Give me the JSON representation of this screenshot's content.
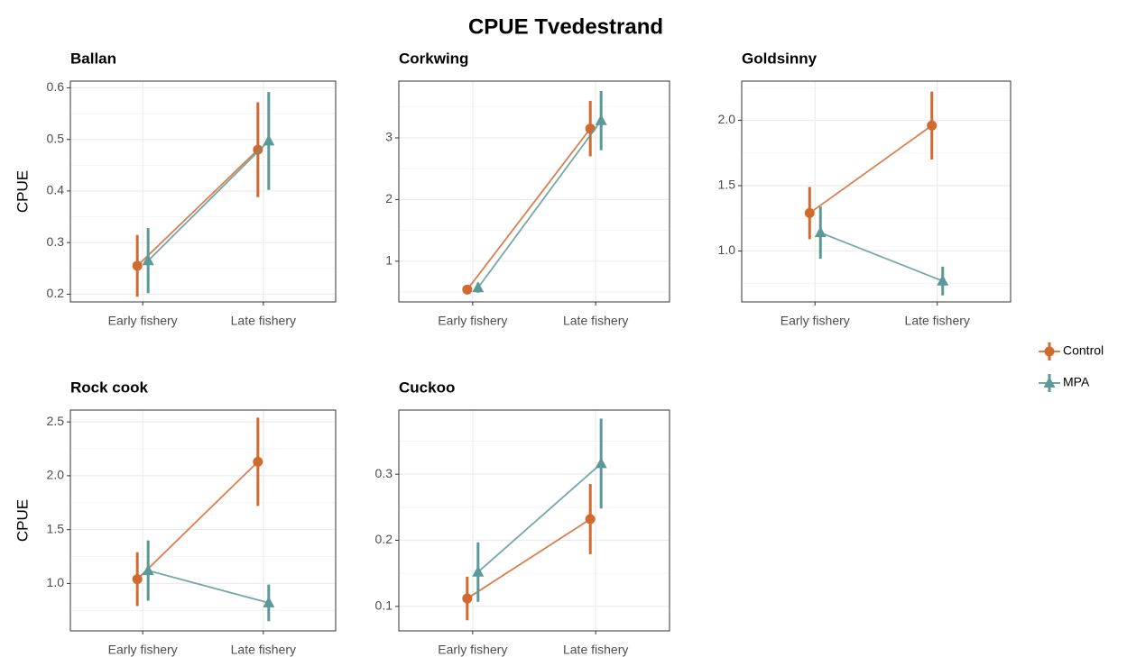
{
  "title": "CPUE Tvedestrand",
  "chart_data": [
    {
      "type": "line",
      "title": "Ballan",
      "ylabel": "CPUE",
      "categories": [
        "Early fishery",
        "Late fishery"
      ],
      "series": [
        {
          "name": "Control",
          "color": "#d2692f",
          "marker": "circle",
          "values": [
            0.255,
            0.48
          ],
          "errors": [
            0.06,
            0.092
          ]
        },
        {
          "name": "MPA",
          "color": "#5a9998",
          "marker": "triangle",
          "values": [
            0.265,
            0.497
          ],
          "errors": [
            0.063,
            0.095
          ]
        }
      ],
      "ylim": [
        0.185,
        0.613
      ],
      "yticks": [
        0.2,
        0.3,
        0.4,
        0.5,
        0.6
      ],
      "grid": true
    },
    {
      "type": "line",
      "title": "Corkwing",
      "categories": [
        "Early fishery",
        "Late fishery"
      ],
      "series": [
        {
          "name": "Control",
          "color": "#d2692f",
          "marker": "circle",
          "values": [
            0.54,
            3.15
          ],
          "errors": [
            0.05,
            0.45
          ]
        },
        {
          "name": "MPA",
          "color": "#5a9998",
          "marker": "triangle",
          "values": [
            0.57,
            3.28
          ],
          "errors": [
            0.08,
            0.48
          ]
        }
      ],
      "ylim": [
        0.34,
        3.92
      ],
      "yticks": [
        1,
        2,
        3
      ],
      "grid": true
    },
    {
      "type": "line",
      "title": "Goldsinny",
      "categories": [
        "Early fishery",
        "Late fishery"
      ],
      "series": [
        {
          "name": "Control",
          "color": "#d2692f",
          "marker": "circle",
          "values": [
            1.29,
            1.96
          ],
          "errors": [
            0.2,
            0.26
          ]
        },
        {
          "name": "MPA",
          "color": "#5a9998",
          "marker": "triangle",
          "values": [
            1.14,
            0.77
          ],
          "errors": [
            0.2,
            0.11
          ]
        }
      ],
      "ylim": [
        0.61,
        2.3
      ],
      "yticks": [
        {
          "value": 1,
          "label": "1.0"
        },
        1.5,
        {
          "value": 2,
          "label": "2.0"
        }
      ],
      "grid": true
    },
    {
      "type": "line",
      "title": "Rock cook",
      "ylabel": "CPUE",
      "categories": [
        "Early fishery",
        "Late fishery"
      ],
      "series": [
        {
          "name": "Control",
          "color": "#d2692f",
          "marker": "circle",
          "values": [
            1.04,
            2.13
          ],
          "errors": [
            0.25,
            0.41
          ]
        },
        {
          "name": "MPA",
          "color": "#5a9998",
          "marker": "triangle",
          "values": [
            1.12,
            0.82
          ],
          "errors": [
            0.28,
            0.17
          ]
        }
      ],
      "ylim": [
        0.56,
        2.61
      ],
      "yticks": [
        {
          "value": 1,
          "label": "1.0"
        },
        1.5,
        {
          "value": 2,
          "label": "2.0"
        },
        2.5
      ],
      "grid": true
    },
    {
      "type": "line",
      "title": "Cuckoo",
      "categories": [
        "Early fishery",
        "Late fishery"
      ],
      "series": [
        {
          "name": "Control",
          "color": "#d2692f",
          "marker": "circle",
          "values": [
            0.112,
            0.232
          ],
          "errors": [
            0.033,
            0.053
          ]
        },
        {
          "name": "MPA",
          "color": "#5a9998",
          "marker": "triangle",
          "values": [
            0.152,
            0.316
          ],
          "errors": [
            0.045,
            0.068
          ]
        }
      ],
      "ylim": [
        0.063,
        0.397
      ],
      "yticks": [
        0.1,
        0.2,
        0.3
      ],
      "grid": true
    }
  ]
}
